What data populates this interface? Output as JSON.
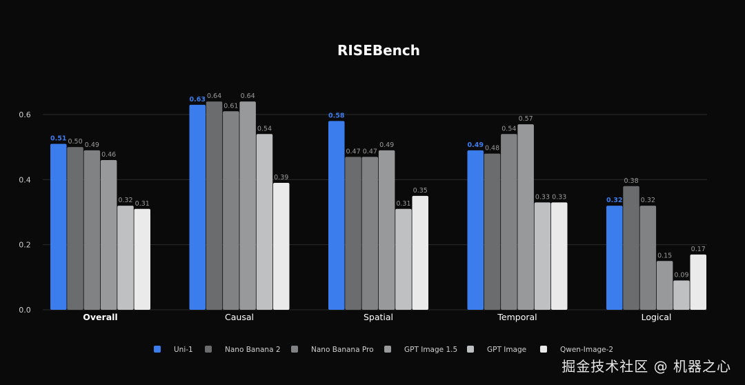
{
  "chart_data": {
    "type": "bar",
    "title": "RISEBench",
    "xlabel": "",
    "ylabel": "",
    "ylim": [
      0,
      0.6
    ],
    "yticks": [
      "0.0",
      "0.2",
      "0.4",
      "0.6"
    ],
    "grid": true,
    "legend_position": "bottom",
    "categories": [
      "Overall",
      "Causal",
      "Spatial",
      "Temporal",
      "Logical"
    ],
    "highlight_category": "Overall",
    "series": [
      {
        "name": "Uni-1",
        "color": "#3b7ded",
        "values": [
          0.51,
          0.63,
          0.58,
          0.49,
          0.32
        ],
        "labels": [
          "0.51",
          "0.63",
          "0.58",
          "0.49",
          "0.32"
        ]
      },
      {
        "name": "Nano Banana 2",
        "color": "#6b6c6d",
        "values": [
          0.5,
          0.64,
          0.47,
          0.48,
          0.38
        ],
        "labels": [
          "0.50",
          "0.64",
          "0.47",
          "0.48",
          "0.38"
        ]
      },
      {
        "name": "Nano Banana Pro",
        "color": "#808284",
        "values": [
          0.49,
          0.61,
          0.47,
          0.54,
          0.32
        ],
        "labels": [
          "0.49",
          "0.61",
          "0.47",
          "0.54",
          "0.32"
        ]
      },
      {
        "name": "GPT Image 1.5",
        "color": "#98999b",
        "values": [
          0.46,
          0.64,
          0.49,
          0.57,
          0.15
        ],
        "labels": [
          "0.46",
          "0.64",
          "0.49",
          "0.57",
          "0.15"
        ]
      },
      {
        "name": "GPT Image",
        "color": "#bfc0c2",
        "values": [
          0.32,
          0.54,
          0.31,
          0.33,
          0.09
        ],
        "labels": [
          "0.32",
          "0.54",
          "0.31",
          "0.33",
          "0.09"
        ]
      },
      {
        "name": "Qwen-Image-2",
        "color": "#eaeaea",
        "values": [
          0.31,
          0.39,
          0.35,
          0.33,
          0.17
        ],
        "labels": [
          "0.31",
          "0.39",
          "0.35",
          "0.33",
          "0.17"
        ]
      }
    ]
  },
  "watermark": "掘金技术社区 @ 机器之心"
}
